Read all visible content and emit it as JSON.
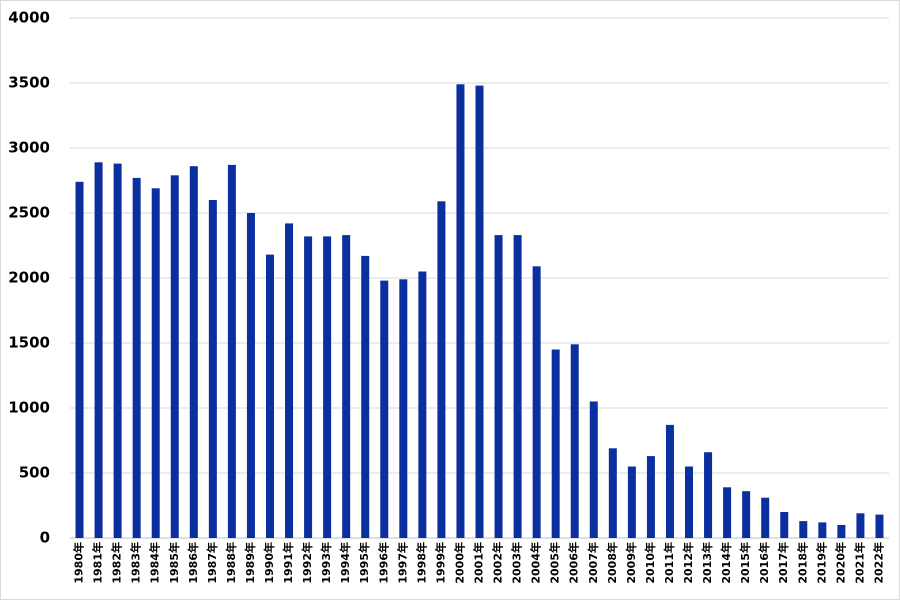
{
  "chart_data": {
    "type": "bar",
    "categories": [
      "1980年",
      "1981年",
      "1982年",
      "1983年",
      "1984年",
      "1985年",
      "1986年",
      "1987年",
      "1988年",
      "1989年",
      "1990年",
      "1991年",
      "1992年",
      "1993年",
      "1994年",
      "1995年",
      "1996年",
      "1997年",
      "1998年",
      "1999年",
      "2000年",
      "2001年",
      "2002年",
      "2003年",
      "2004年",
      "2005年",
      "2006年",
      "2007年",
      "2008年",
      "2009年",
      "2010年",
      "2011年",
      "2012年",
      "2013年",
      "2014年",
      "2015年",
      "2016年",
      "2017年",
      "2018年",
      "2019年",
      "2020年",
      "2021年",
      "2022年"
    ],
    "values": [
      2740,
      2890,
      2880,
      2770,
      2690,
      2790,
      2860,
      2600,
      2870,
      2500,
      2180,
      2420,
      2320,
      2320,
      2330,
      2170,
      1980,
      1990,
      2050,
      2590,
      3490,
      3480,
      2330,
      2330,
      2090,
      1450,
      1490,
      1050,
      690,
      550,
      630,
      870,
      550,
      660,
      390,
      360,
      310,
      200,
      130,
      120,
      100,
      190,
      180
    ],
    "color": "#0b2f9f",
    "ylim": [
      0,
      4000
    ],
    "yticks": [
      0,
      500,
      1000,
      1500,
      2000,
      2500,
      3000,
      3500,
      4000
    ],
    "grid": true
  }
}
